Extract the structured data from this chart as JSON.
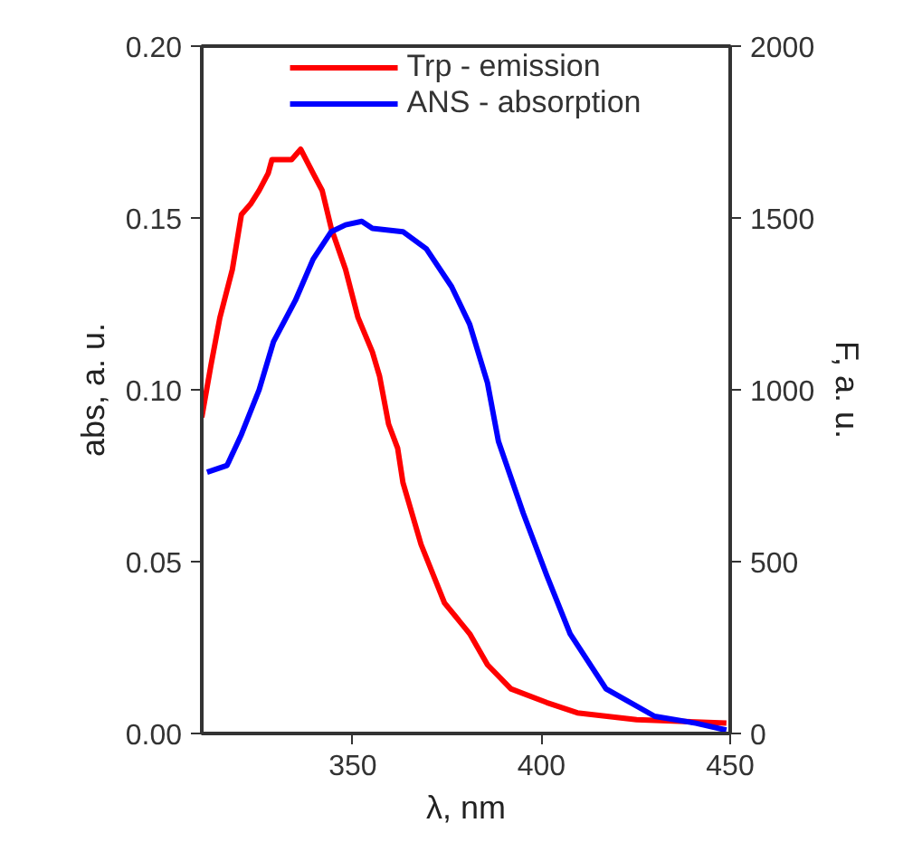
{
  "chart_data": {
    "type": "line",
    "xlabel": "λ, nm",
    "ylabel": "abs, a. u.",
    "y2label": "F, a. u.",
    "xlim": [
      310,
      450
    ],
    "xticks": [
      350,
      400,
      450
    ],
    "ylim": [
      0,
      0.2
    ],
    "yticks": [
      {
        "value": 0,
        "label": "0.00"
      },
      0.05,
      {
        "value": 0.1,
        "label": "0.10"
      },
      0.15,
      {
        "value": 0.2,
        "label": "0.20"
      }
    ],
    "y2lim": [
      0,
      2000
    ],
    "y2ticks": [
      0,
      500,
      1000,
      1500,
      2000
    ],
    "legend": "top",
    "grid": false,
    "marker": "none",
    "line_style": "solid",
    "series": [
      {
        "name": "Trp - emission",
        "color": "#ff0000",
        "axis": "y2",
        "x": [
          310,
          312.4,
          314.8,
          318.1,
          320.5,
          322.9,
          325.2,
          327.6,
          328.6,
          333.8,
          336.2,
          339.5,
          341.9,
          344.3,
          348.1,
          351.4,
          355.2,
          357.1,
          359.5,
          361.9,
          363.3,
          368.1,
          374.3,
          381,
          385.7,
          391.9,
          401.4,
          409.5,
          425.2,
          449
        ],
        "values": [
          920,
          1070,
          1210,
          1350,
          1510,
          1540,
          1580,
          1630,
          1670,
          1670,
          1700,
          1630,
          1580,
          1470,
          1350,
          1210,
          1110,
          1040,
          900,
          830,
          730,
          550,
          380,
          290,
          200,
          130,
          90,
          60,
          40,
          30
        ]
      },
      {
        "name": "ANS - absorption",
        "color": "#0000ff",
        "x": [
          311.4,
          316.7,
          320.5,
          325.2,
          329,
          334.8,
          339.5,
          344.3,
          348.1,
          352.4,
          355.2,
          363.3,
          369.5,
          376.2,
          381,
          385.7,
          388.6,
          395.2,
          401.4,
          407.6,
          417.1,
          430,
          440.9,
          449
        ],
        "values": [
          0.076,
          0.078,
          0.087,
          0.1,
          0.114,
          0.126,
          0.138,
          0.146,
          0.148,
          0.149,
          0.147,
          0.146,
          0.141,
          0.13,
          0.119,
          0.102,
          0.085,
          0.064,
          0.046,
          0.029,
          0.013,
          0.005,
          0.003,
          0.001
        ]
      }
    ]
  }
}
